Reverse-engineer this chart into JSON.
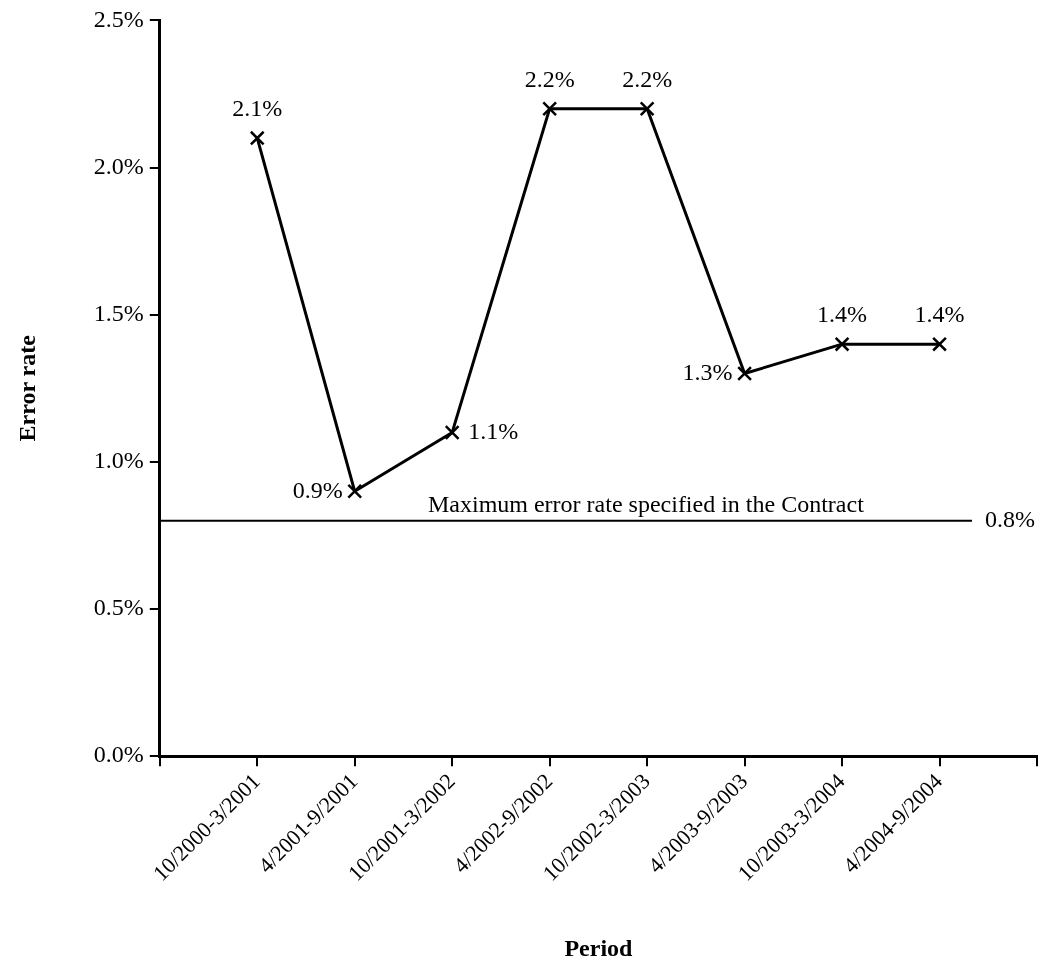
{
  "chart_data": {
    "type": "line",
    "xlabel": "Period",
    "ylabel": "Error rate",
    "categories": [
      null,
      "10/2000-3/2001",
      "4/2001-9/2001",
      "10/2001-3/2002",
      "4/2002-9/2002",
      "10/2002-3/2003",
      "4/2003-9/2003",
      "10/2003-3/2004",
      "4/2004-9/2004",
      null
    ],
    "series": [
      {
        "color": "#000000",
        "values": [
          null,
          2.1,
          0.9,
          1.1,
          2.2,
          2.2,
          1.3,
          1.4,
          1.4,
          null
        ],
        "value_labels": [
          null,
          "2.1%",
          "0.9%",
          "1.1%",
          "2.2%",
          "2.2%",
          "1.3%",
          "1.4%",
          "1.4%",
          null
        ]
      }
    ],
    "ylim": [
      0,
      2.5
    ],
    "yticks": [
      {
        "value": 0,
        "label": "0.0%"
      },
      {
        "value": 0.5,
        "label": "0.5%"
      },
      {
        "value": 1,
        "label": "1.0%"
      },
      {
        "value": 1.5,
        "label": "1.5%"
      },
      {
        "value": 2,
        "label": "2.0%"
      },
      {
        "value": 2.5,
        "label": "2.5%"
      }
    ],
    "ref_lines": [
      {
        "axis": "y",
        "value": 0.8,
        "label": "Maximum error rate specified in the Contract",
        "color": "#000000",
        "line_style": "solid"
      }
    ],
    "annotations": [
      "0.8%"
    ],
    "marker": "cross",
    "line_style": "solid",
    "legend": false
  }
}
